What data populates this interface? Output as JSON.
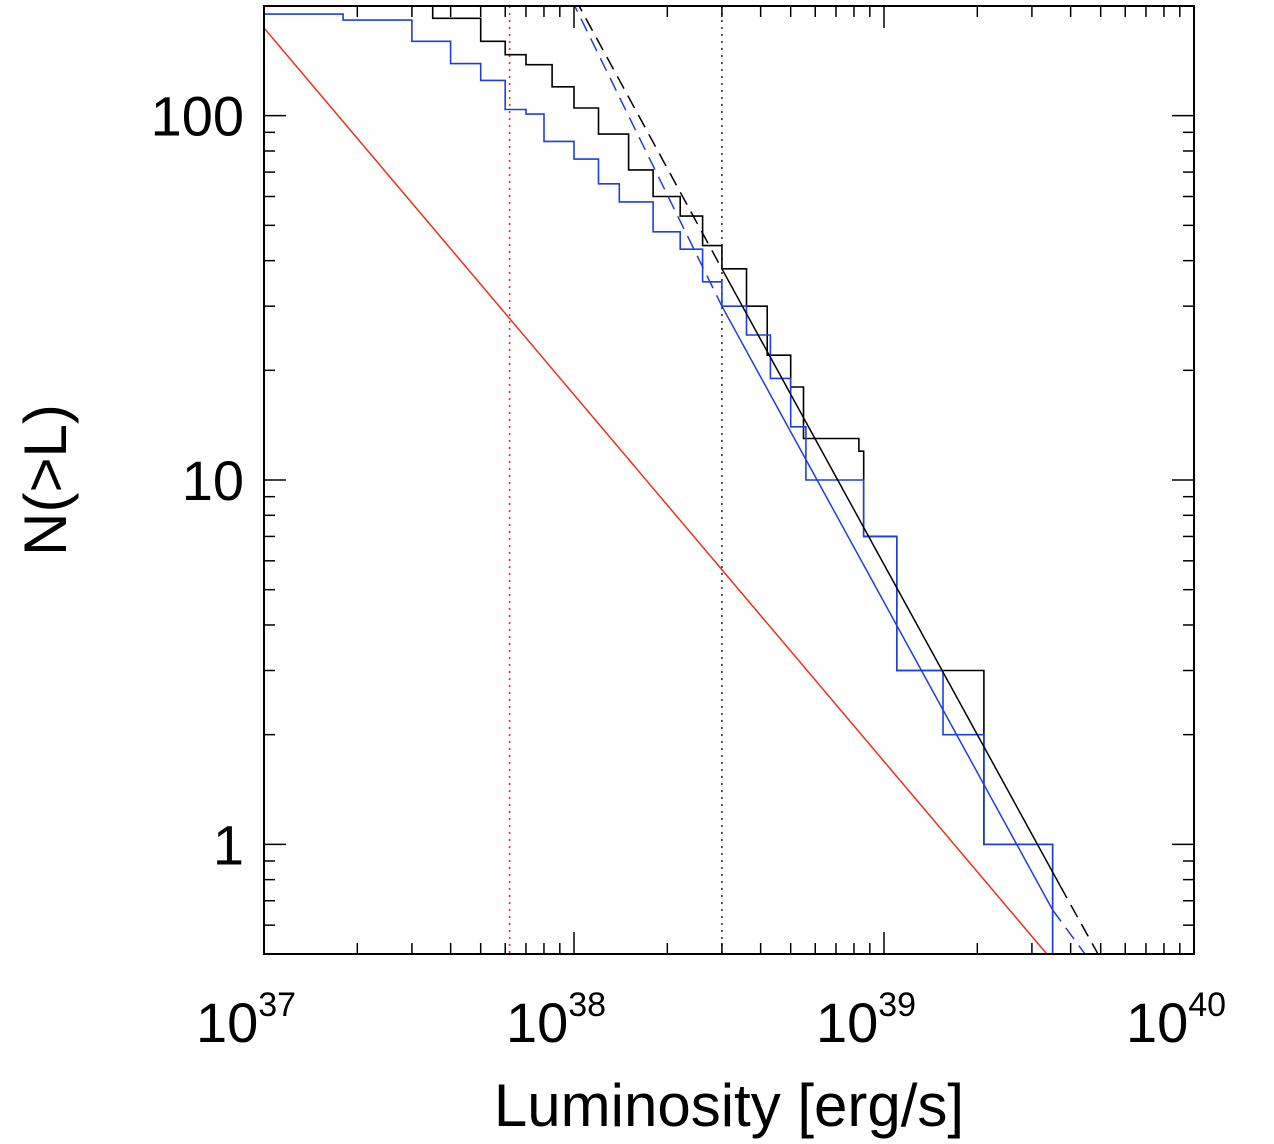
{
  "chart_data": {
    "type": "line",
    "title": "",
    "xlabel": "Luminosity [erg/s]",
    "ylabel": "N(>L)",
    "xscale": "log",
    "yscale": "log",
    "xlim": [
      1e+37,
      1e+40
    ],
    "ylim": [
      0.5,
      200
    ],
    "grid": false,
    "legend": "none",
    "x_ticks": [
      {
        "value": 1e+37,
        "base": "10",
        "exp": "37"
      },
      {
        "value": 1e+38,
        "base": "10",
        "exp": "38"
      },
      {
        "value": 1e+39,
        "base": "10",
        "exp": "39"
      },
      {
        "value": 1e+40,
        "base": "10",
        "exp": "40"
      }
    ],
    "y_ticks": [
      {
        "value": 1,
        "label": "1"
      },
      {
        "value": 10,
        "label": "10"
      },
      {
        "value": 100,
        "label": "100"
      }
    ],
    "series": [
      {
        "kind": "step",
        "color": "#000000",
        "points": [
          [
            1e+37,
            228
          ],
          [
            1.6e+37,
            222
          ],
          [
            2.5e+37,
            205
          ],
          [
            3.5e+37,
            185
          ],
          [
            5e+37,
            160
          ],
          [
            6e+37,
            147
          ],
          [
            7e+37,
            138
          ],
          [
            8.5e+37,
            120
          ],
          [
            1e+38,
            105
          ],
          [
            1.2e+38,
            89
          ],
          [
            1.5e+38,
            71
          ],
          [
            1.8e+38,
            60
          ],
          [
            2.2e+38,
            53
          ],
          [
            2.6e+38,
            44
          ],
          [
            3e+38,
            38
          ],
          [
            3.6e+38,
            30
          ],
          [
            4.2e+38,
            22
          ],
          [
            5e+38,
            18
          ],
          [
            5.5e+38,
            13
          ],
          [
            8.3e+38,
            12
          ],
          [
            8.6e+38,
            7
          ],
          [
            1.1e+39,
            6
          ],
          [
            1.1e+39,
            3
          ],
          [
            2.1e+39,
            3
          ],
          [
            2.1e+39,
            1
          ],
          [
            3.5e+39,
            1
          ],
          [
            3.5e+39,
            0.5
          ]
        ]
      },
      {
        "kind": "step",
        "color": "#1f3fd6",
        "points": [
          [
            1e+37,
            190
          ],
          [
            1.8e+37,
            183
          ],
          [
            3e+37,
            160
          ],
          [
            4e+37,
            139
          ],
          [
            5e+37,
            125
          ],
          [
            6e+37,
            104
          ],
          [
            7e+37,
            101
          ],
          [
            8e+37,
            85
          ],
          [
            1e+38,
            76
          ],
          [
            1.2e+38,
            65
          ],
          [
            1.4e+38,
            58
          ],
          [
            1.8e+38,
            48
          ],
          [
            2.2e+38,
            43
          ],
          [
            2.6e+38,
            35
          ],
          [
            3e+38,
            30
          ],
          [
            3.6e+38,
            25
          ],
          [
            4.3e+38,
            19
          ],
          [
            5e+38,
            14
          ],
          [
            5.6e+38,
            10
          ],
          [
            8.3e+38,
            10
          ],
          [
            8.6e+38,
            7
          ],
          [
            1.1e+39,
            6
          ],
          [
            1.1e+39,
            3
          ],
          [
            1.55e+39,
            3
          ],
          [
            1.55e+39,
            2
          ],
          [
            2.1e+39,
            2
          ],
          [
            2.1e+39,
            1
          ],
          [
            3.5e+39,
            1
          ],
          [
            3.5e+39,
            0.5
          ]
        ]
      },
      {
        "kind": "fit",
        "color": "#000000",
        "dash": "solid",
        "points": [
          [
            3e+38,
            38
          ],
          [
            3.7e+39,
            0.77
          ]
        ]
      },
      {
        "kind": "fit",
        "color": "#000000",
        "dash": "dashed",
        "points": [
          [
            1.01e+38,
            209
          ],
          [
            3e+38,
            38
          ]
        ]
      },
      {
        "kind": "fit",
        "color": "#000000",
        "dash": "dashed",
        "points": [
          [
            3.7e+39,
            0.77
          ],
          [
            4.9e+39,
            0.5
          ]
        ]
      },
      {
        "kind": "fit",
        "color": "#1f3fd6",
        "dash": "solid",
        "points": [
          [
            3e+38,
            30
          ],
          [
            3.5e+39,
            0.66
          ]
        ]
      },
      {
        "kind": "fit",
        "color": "#1f3fd6",
        "dash": "dashed",
        "points": [
          [
            9.8e+37,
            209
          ],
          [
            3e+38,
            30
          ]
        ]
      },
      {
        "kind": "fit",
        "color": "#1f3fd6",
        "dash": "dashed",
        "points": [
          [
            3.5e+39,
            0.66
          ],
          [
            4.45e+39,
            0.5
          ]
        ]
      },
      {
        "kind": "fit",
        "color": "#e8321e",
        "dash": "solid",
        "points": [
          [
            1e+37,
            174
          ],
          [
            3.35e+39,
            0.5
          ]
        ]
      }
    ],
    "vlines": [
      {
        "x": 6.2e+37,
        "color": "#e8321e",
        "dash": "dotted"
      },
      {
        "x": 3e+38,
        "color": "#333333",
        "dash": "dotted"
      }
    ]
  }
}
